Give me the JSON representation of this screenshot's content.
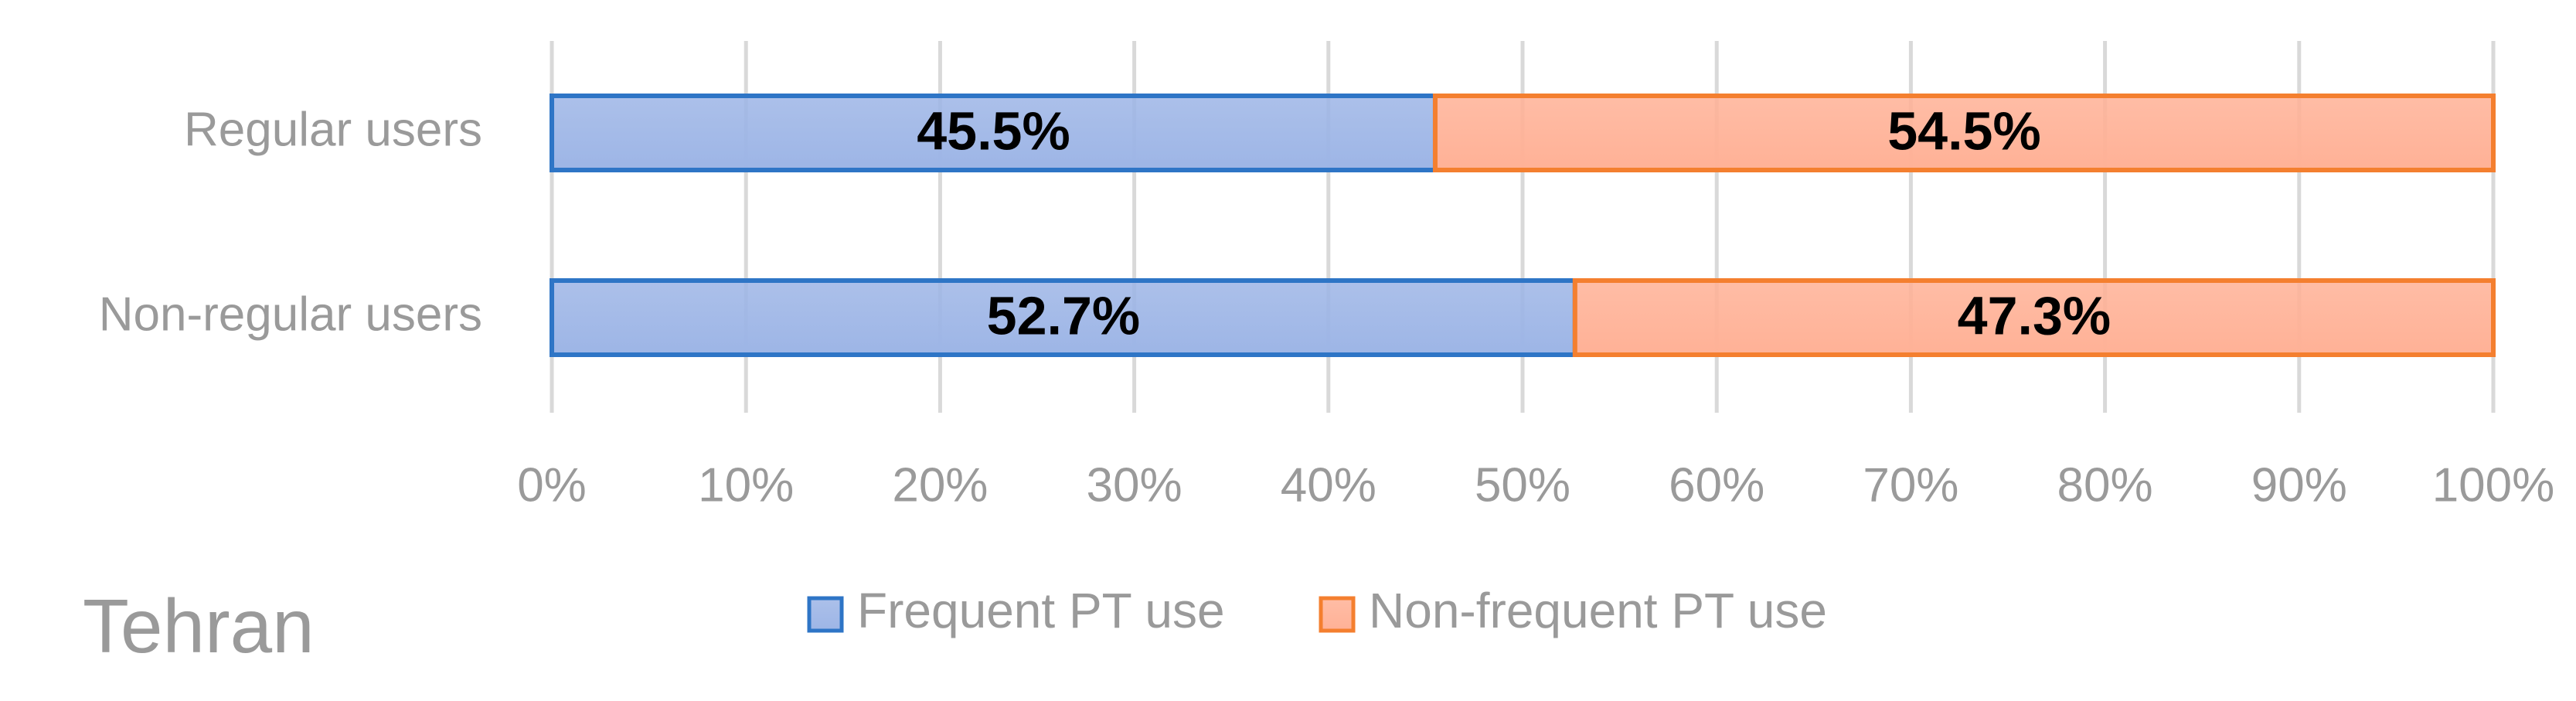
{
  "chart_data": {
    "type": "bar",
    "orientation": "horizontal",
    "stacked": true,
    "annotation": "Tehran",
    "categories": [
      "Regular users",
      "Non-regular users"
    ],
    "series": [
      {
        "name": "Frequent PT use",
        "color": "#9db5e6",
        "edgecolor": "#2e75c6",
        "values": [
          45.5,
          52.7
        ],
        "value_labels": [
          "45.5%",
          "52.7%"
        ]
      },
      {
        "name": "Non-frequent PT use",
        "color": "#ffb196",
        "edgecolor": "#f47f2f",
        "values": [
          54.5,
          47.3
        ],
        "value_labels": [
          "54.5%",
          "47.3%"
        ]
      }
    ],
    "xlim": [
      0,
      100
    ],
    "xticks": [
      {
        "value": 0,
        "label": "0%"
      },
      {
        "value": 10,
        "label": "10%"
      },
      {
        "value": 20,
        "label": "20%"
      },
      {
        "value": 30,
        "label": "30%"
      },
      {
        "value": 40,
        "label": "40%"
      },
      {
        "value": 50,
        "label": "50%"
      },
      {
        "value": 60,
        "label": "60%"
      },
      {
        "value": 70,
        "label": "70%"
      },
      {
        "value": 80,
        "label": "80%"
      },
      {
        "value": 90,
        "label": "90%"
      },
      {
        "value": 100,
        "label": "100%"
      }
    ],
    "grid": true,
    "legend": "bottom"
  }
}
